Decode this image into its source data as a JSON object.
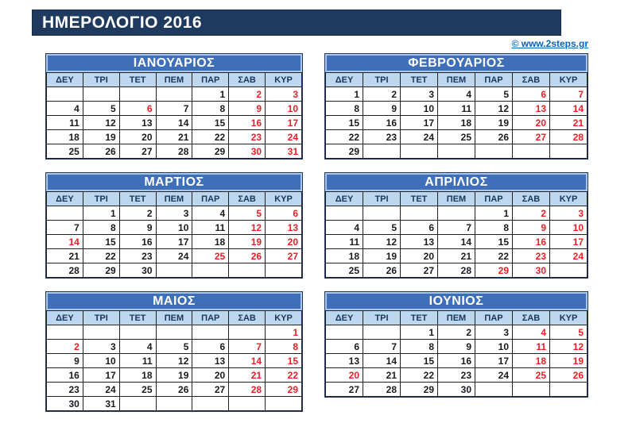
{
  "header": {
    "title": "ΗΜΕΡΟΛΟΓΙΟ 2016",
    "link_label": "© www.2steps.gr"
  },
  "calendar": {
    "weekdays": [
      "ΔΕΥ",
      "ΤΡΙ",
      "ΤΕΤ",
      "ΠΕΜ",
      "ΠΑΡ",
      "ΣΑΒ",
      "ΚΥΡ"
    ],
    "months": [
      {
        "name": "ΙΑΝΟΥΑΡΙΟΣ",
        "weeks": [
          [
            "",
            "",
            "",
            "",
            "1",
            "2",
            "3"
          ],
          [
            "4",
            "5",
            "6",
            "7",
            "8",
            "9",
            "10"
          ],
          [
            "11",
            "12",
            "13",
            "14",
            "15",
            "16",
            "17"
          ],
          [
            "18",
            "19",
            "20",
            "21",
            "22",
            "23",
            "24"
          ],
          [
            "25",
            "26",
            "27",
            "28",
            "29",
            "30",
            "31"
          ]
        ],
        "red_days": [
          2,
          3,
          6,
          9,
          10,
          16,
          17,
          23,
          24,
          30,
          31
        ]
      },
      {
        "name": "ΦΕΒΡΟΥΑΡΙΟΣ",
        "weeks": [
          [
            "1",
            "2",
            "3",
            "4",
            "5",
            "6",
            "7"
          ],
          [
            "8",
            "9",
            "10",
            "11",
            "12",
            "13",
            "14"
          ],
          [
            "15",
            "16",
            "17",
            "18",
            "19",
            "20",
            "21"
          ],
          [
            "22",
            "23",
            "24",
            "25",
            "26",
            "27",
            "28"
          ],
          [
            "29",
            "",
            "",
            "",
            "",
            "",
            ""
          ]
        ],
        "red_days": [
          6,
          7,
          13,
          14,
          20,
          21,
          27,
          28
        ]
      },
      {
        "name": "ΜΑΡΤΙΟΣ",
        "weeks": [
          [
            "",
            "1",
            "2",
            "3",
            "4",
            "5",
            "6"
          ],
          [
            "7",
            "8",
            "9",
            "10",
            "11",
            "12",
            "13"
          ],
          [
            "14",
            "15",
            "16",
            "17",
            "18",
            "19",
            "20"
          ],
          [
            "21",
            "22",
            "23",
            "24",
            "25",
            "26",
            "27"
          ],
          [
            "28",
            "29",
            "30",
            "",
            "",
            "",
            ""
          ]
        ],
        "red_days": [
          5,
          6,
          12,
          13,
          14,
          19,
          20,
          25,
          26,
          27
        ]
      },
      {
        "name": "ΑΠΡΙΛΙΟΣ",
        "weeks": [
          [
            "",
            "",
            "",
            "",
            "1",
            "2",
            "3"
          ],
          [
            "4",
            "5",
            "6",
            "7",
            "8",
            "9",
            "10"
          ],
          [
            "11",
            "12",
            "13",
            "14",
            "15",
            "16",
            "17"
          ],
          [
            "18",
            "19",
            "20",
            "21",
            "22",
            "23",
            "24"
          ],
          [
            "25",
            "26",
            "27",
            "28",
            "29",
            "30",
            ""
          ]
        ],
        "red_days": [
          2,
          3,
          9,
          10,
          16,
          17,
          23,
          24,
          29,
          30
        ]
      },
      {
        "name": "ΜΑΙΟΣ",
        "weeks": [
          [
            "",
            "",
            "",
            "",
            "",
            "",
            "1"
          ],
          [
            "2",
            "3",
            "4",
            "5",
            "6",
            "7",
            "8"
          ],
          [
            "9",
            "10",
            "11",
            "12",
            "13",
            "14",
            "15"
          ],
          [
            "16",
            "17",
            "18",
            "19",
            "20",
            "21",
            "22"
          ],
          [
            "23",
            "24",
            "25",
            "26",
            "27",
            "28",
            "29"
          ],
          [
            "30",
            "31",
            "",
            "",
            "",
            "",
            ""
          ]
        ],
        "red_days": [
          1,
          2,
          7,
          8,
          14,
          15,
          21,
          22,
          28,
          29
        ]
      },
      {
        "name": "ΙΟΥΝΙΟΣ",
        "weeks": [
          [
            "",
            "",
            "1",
            "2",
            "3",
            "4",
            "5"
          ],
          [
            "6",
            "7",
            "8",
            "9",
            "10",
            "11",
            "12"
          ],
          [
            "13",
            "14",
            "15",
            "16",
            "17",
            "18",
            "19"
          ],
          [
            "20",
            "21",
            "22",
            "23",
            "24",
            "25",
            "26"
          ],
          [
            "27",
            "28",
            "29",
            "30",
            "",
            "",
            ""
          ]
        ],
        "red_days": [
          4,
          5,
          11,
          12,
          18,
          19,
          20,
          25,
          26
        ]
      }
    ]
  },
  "colors": {
    "title_bar_bg": "#1e3a5f",
    "month_header_bg": "#3e6fb8",
    "month_header_border": "#a9c7e8",
    "weekday_bg": "#bdd7ee",
    "weekday_text": "#17375e",
    "grid_border": "#222222",
    "day_text": "#1a1a1f",
    "red_day": "#ee1c25",
    "link": "#0563c1"
  }
}
